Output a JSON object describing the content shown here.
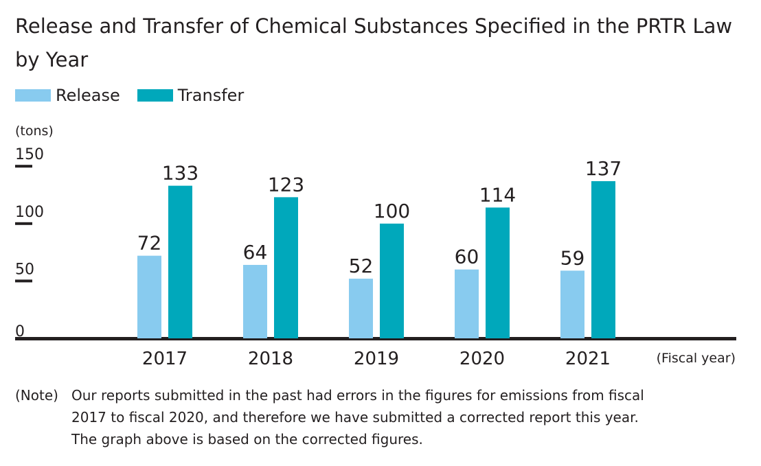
{
  "chart_data": {
    "type": "bar",
    "title": "Release and Transfer of Chemical Substances Specified in the PRTR Law by Year",
    "ylabel": "(tons)",
    "xlabel": "(Fiscal year)",
    "categories": [
      "2017",
      "2018",
      "2019",
      "2020",
      "2021"
    ],
    "series": [
      {
        "name": "Release",
        "values": [
          72,
          64,
          52,
          60,
          59
        ],
        "color": "#88cbef"
      },
      {
        "name": "Transfer",
        "values": [
          133,
          123,
          100,
          114,
          137
        ],
        "color": "#00a8bb"
      }
    ],
    "y_ticks": [
      "0",
      "50",
      "100",
      "150"
    ],
    "ylim": [
      0,
      150
    ],
    "grid": false,
    "legend_position": "top-left"
  },
  "note": {
    "prefix": "(Note)",
    "lines": [
      "Our reports submitted in the past had errors in the figures for emissions from fiscal",
      "2017 to fiscal 2020, and therefore we have submitted a corrected report this year.",
      "The graph above is based on the corrected figures."
    ]
  }
}
